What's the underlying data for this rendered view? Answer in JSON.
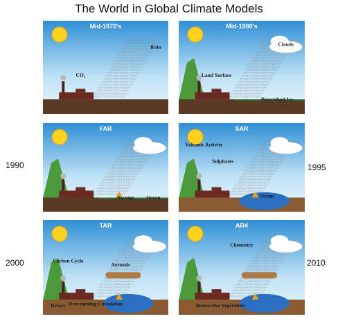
{
  "title": "The World in Global Climate Models",
  "panels": [
    {
      "label": "Mid-1970's",
      "annotations": [
        "Rain",
        "CO₂"
      ]
    },
    {
      "label": "Mid-1980's",
      "annotations": [
        "Clouds",
        "Land Surface",
        "Prescribed Ice"
      ]
    },
    {
      "label": "FAR",
      "annotations": [
        "Swamp",
        "Ocean"
      ]
    },
    {
      "label": "SAR",
      "annotations": [
        "Volcanic Activity",
        "Sulphates",
        "Ocean"
      ]
    },
    {
      "label": "TAR",
      "annotations": [
        "Carbon Cycle",
        "Aerosols",
        "Rivers",
        "Overturning Circulation"
      ]
    },
    {
      "label": "AR4",
      "annotations": [
        "Chemistry",
        "Interactive Vegetation"
      ]
    }
  ],
  "years": [
    "1990",
    "1995",
    "2000",
    "2010"
  ]
}
